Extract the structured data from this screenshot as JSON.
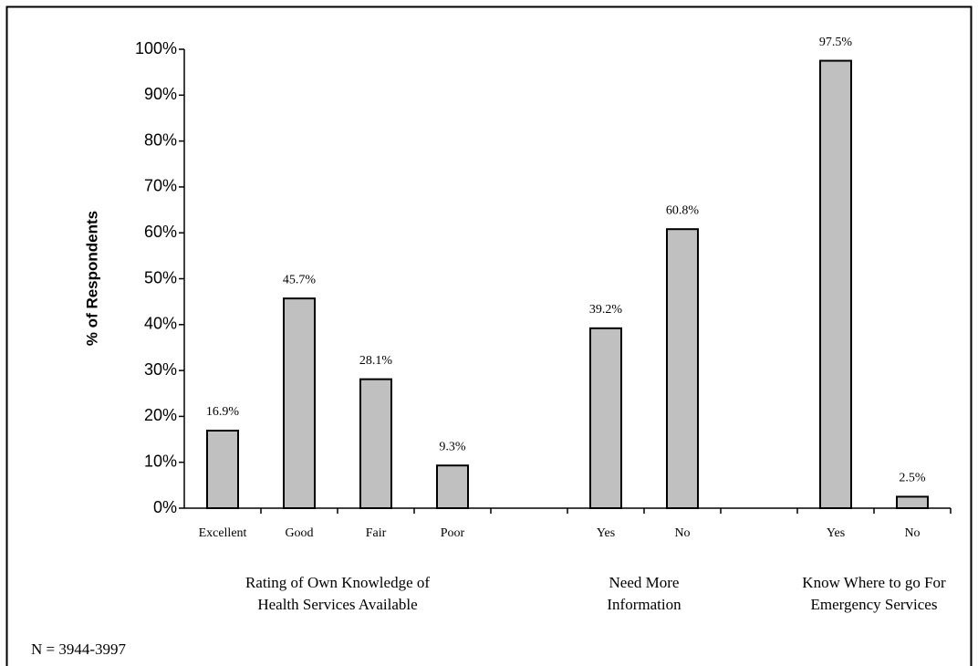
{
  "chart_data": {
    "type": "bar",
    "y_label": "% of Respondents",
    "categories": [
      "Excellent",
      "Good",
      "Fair",
      "Poor",
      null,
      "Yes",
      "No",
      null,
      "Yes",
      "No"
    ],
    "values": [
      16.9,
      45.7,
      28.1,
      9.3,
      null,
      39.2,
      60.8,
      null,
      97.5,
      2.5
    ],
    "value_labels": [
      "16.9%",
      "45.7%",
      "28.1%",
      "9.3%",
      null,
      "39.2%",
      "60.8%",
      null,
      "97.5%",
      "2.5%"
    ],
    "group_labels": [
      [
        "Rating of Own Knowledge of",
        "Health Services Available"
      ],
      [
        "Need More",
        "Information"
      ],
      [
        "Know Where to go For",
        "Emergency Services"
      ]
    ],
    "color": "#c0c0c0",
    "ylim": [
      0,
      100
    ],
    "yticks": [
      {
        "value": 0,
        "label": "0%"
      },
      {
        "value": 10,
        "label": "10%"
      },
      {
        "value": 20,
        "label": "20%"
      },
      {
        "value": 30,
        "label": "30%"
      },
      {
        "value": 40,
        "label": "40%"
      },
      {
        "value": 50,
        "label": "50%"
      },
      {
        "value": 60,
        "label": "60%"
      },
      {
        "value": 70,
        "label": "70%"
      },
      {
        "value": 80,
        "label": "80%"
      },
      {
        "value": 90,
        "label": "90%"
      },
      {
        "value": 100,
        "label": "100%"
      }
    ],
    "note": "N = 3944-3997"
  }
}
